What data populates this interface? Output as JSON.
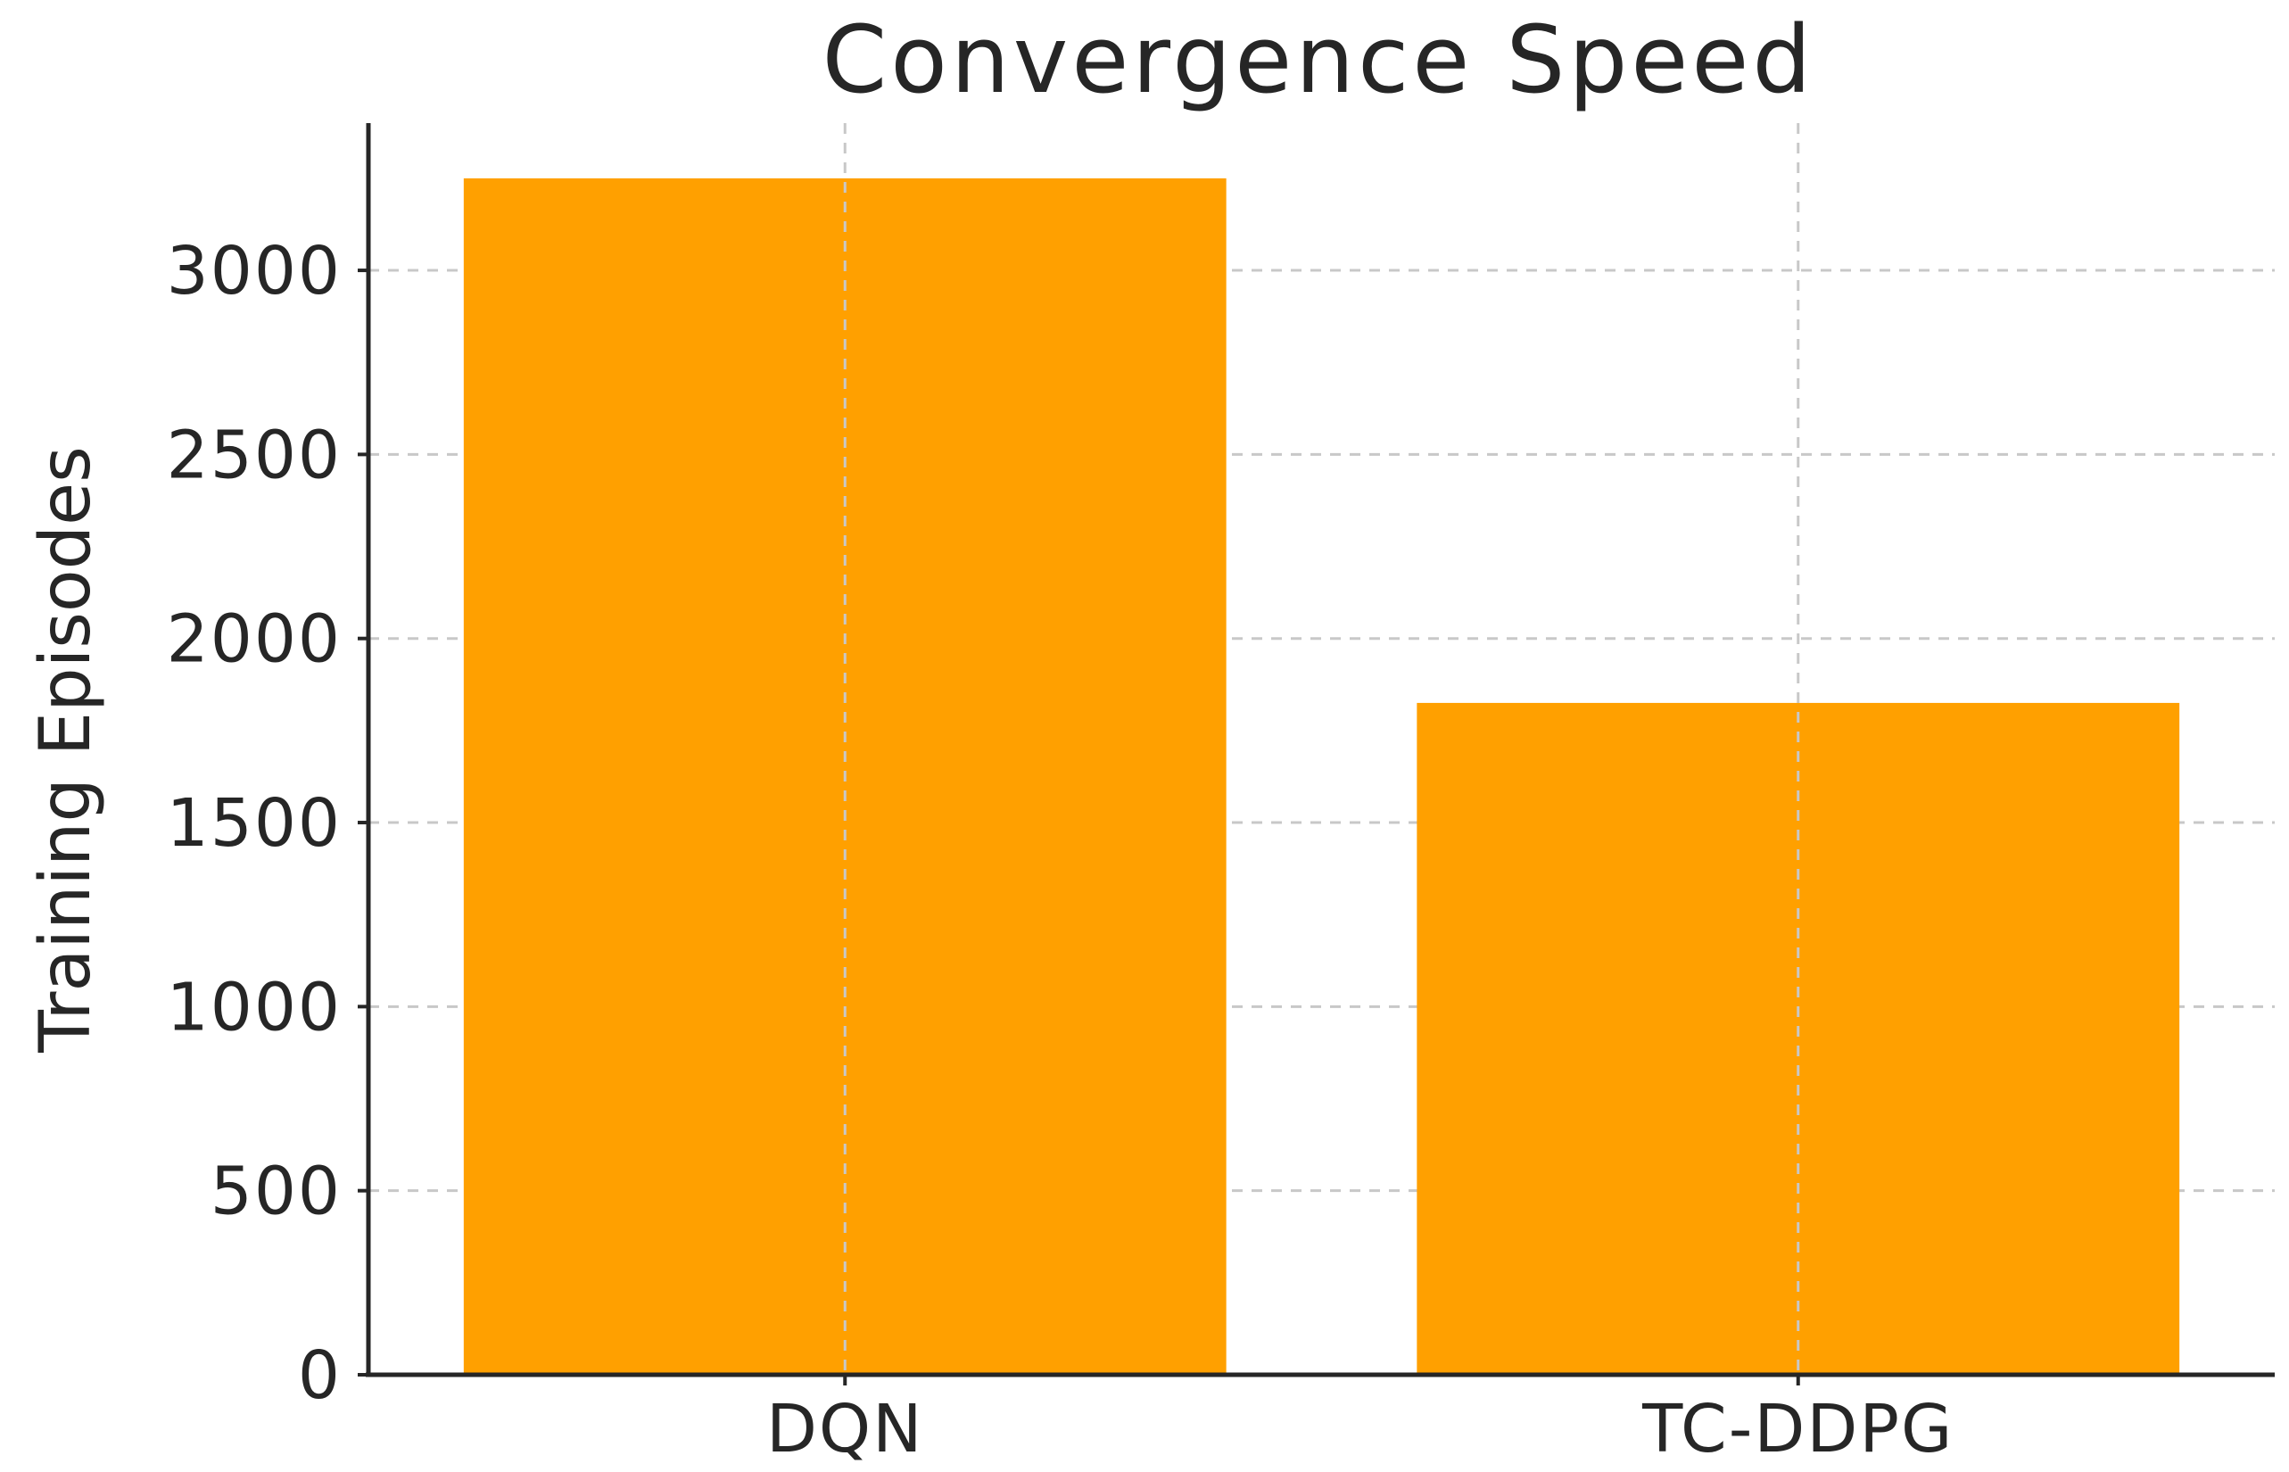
{
  "chart_data": {
    "type": "bar",
    "title": "Convergence Speed",
    "xlabel": "",
    "ylabel": "Training Episodes",
    "categories": [
      "DQN",
      "TC-DDPG"
    ],
    "values": [
      3250,
      1825
    ],
    "yticks": [
      0,
      500,
      1000,
      1500,
      2000,
      2500,
      3000
    ],
    "ylim": [
      0,
      3400
    ],
    "grid": true,
    "bar_color": "#FFA000"
  }
}
